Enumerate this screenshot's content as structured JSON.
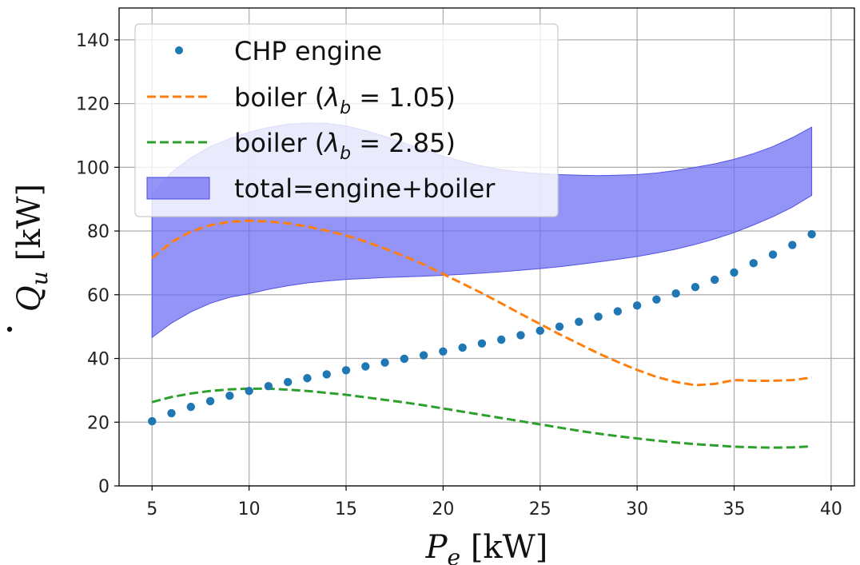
{
  "chart_data": {
    "type": "line",
    "xlabel": {
      "base": "P",
      "sub": "e",
      "unit": " [kW]"
    },
    "ylabel": {
      "base": "Q",
      "sub": "u",
      "unit": " [kW]",
      "accent": "dot"
    },
    "xlim": [
      3.3,
      41.2
    ],
    "ylim": [
      0,
      150
    ],
    "xticks": [
      5,
      10,
      15,
      20,
      25,
      30,
      35,
      40
    ],
    "yticks": [
      0,
      20,
      40,
      60,
      80,
      100,
      120,
      140
    ],
    "grid": true,
    "legend_position": "top-left",
    "legend": [
      {
        "key": "engine",
        "marker": "dot",
        "text": "CHP engine"
      },
      {
        "key": "boiler_a",
        "marker": "dash",
        "prefix": "boiler (",
        "lambda": "λ",
        "sub": "b",
        "eq": " = 1.05)"
      },
      {
        "key": "boiler_b",
        "marker": "dash",
        "prefix": "boiler (",
        "lambda": "λ",
        "sub": "b",
        "eq": " = 2.85)"
      },
      {
        "key": "total",
        "marker": "patch",
        "text": "total=engine+boiler"
      }
    ],
    "series": [
      {
        "key": "engine",
        "style": "scatter",
        "color": "#1f77b4",
        "x": [
          5,
          6,
          7,
          8,
          9,
          10,
          11,
          12,
          13,
          14,
          15,
          16,
          17,
          18,
          19,
          20,
          21,
          22,
          23,
          24,
          25,
          26,
          27,
          28,
          29,
          30,
          31,
          32,
          33,
          34,
          35,
          36,
          37,
          38,
          39
        ],
        "values": [
          20.3,
          22.8,
          24.8,
          26.6,
          28.3,
          29.8,
          31.3,
          32.6,
          33.8,
          35.0,
          36.3,
          37.5,
          38.7,
          39.9,
          41.0,
          42.2,
          43.4,
          44.7,
          45.9,
          47.3,
          48.7,
          50.0,
          51.5,
          53.1,
          54.8,
          56.6,
          58.5,
          60.4,
          62.4,
          64.7,
          67.0,
          69.9,
          72.6,
          75.6,
          79.0
        ]
      },
      {
        "key": "boiler_a",
        "style": "dashed",
        "color": "#ff7f0e",
        "x": [
          5,
          6,
          7,
          8,
          9,
          10,
          11,
          12,
          13,
          14,
          15,
          16,
          17,
          18,
          19,
          20,
          21,
          22,
          23,
          24,
          25,
          26,
          27,
          28,
          29,
          30,
          31,
          32,
          33,
          34,
          35,
          36,
          37,
          38,
          39
        ],
        "values": [
          71.5,
          76.5,
          79.8,
          81.8,
          82.9,
          83.2,
          83.0,
          82.4,
          81.4,
          80.1,
          78.6,
          76.7,
          74.5,
          72.1,
          69.5,
          66.5,
          63.5,
          60.5,
          57.3,
          54.0,
          50.8,
          47.6,
          44.6,
          41.6,
          38.9,
          36.4,
          34.2,
          32.6,
          31.6,
          32.0,
          33.2,
          33.0,
          33.0,
          33.2,
          34.0
        ]
      },
      {
        "key": "boiler_b",
        "style": "dashed",
        "color": "#2ca02c",
        "x": [
          5,
          6,
          7,
          8,
          9,
          10,
          11,
          12,
          13,
          14,
          15,
          16,
          17,
          18,
          19,
          20,
          21,
          22,
          23,
          24,
          25,
          26,
          27,
          28,
          29,
          30,
          31,
          32,
          33,
          34,
          35,
          36,
          37,
          38,
          39
        ],
        "values": [
          26.3,
          27.9,
          29.0,
          29.8,
          30.3,
          30.5,
          30.5,
          30.2,
          29.8,
          29.2,
          28.6,
          27.8,
          27.0,
          26.2,
          25.3,
          24.3,
          23.3,
          22.3,
          21.3,
          20.3,
          19.3,
          18.3,
          17.3,
          16.4,
          15.6,
          14.9,
          14.2,
          13.6,
          13.1,
          12.7,
          12.3,
          12.1,
          12.0,
          12.1,
          12.4
        ]
      },
      {
        "key": "total",
        "style": "band",
        "color": "#6b6bf2",
        "x": [
          5,
          6,
          7,
          8,
          9,
          10,
          11,
          12,
          13,
          14,
          15,
          16,
          17,
          18,
          19,
          20,
          21,
          22,
          23,
          24,
          25,
          26,
          27,
          28,
          29,
          30,
          31,
          32,
          33,
          34,
          35,
          36,
          37,
          38,
          39
        ],
        "lower": [
          46.6,
          51.1,
          54.6,
          57.3,
          59.2,
          60.3,
          61.7,
          62.8,
          63.7,
          64.3,
          64.8,
          65.1,
          65.4,
          65.6,
          65.8,
          66.1,
          66.4,
          66.8,
          67.2,
          67.7,
          68.2,
          68.8,
          69.5,
          70.3,
          71.1,
          72.0,
          73.1,
          74.3,
          75.8,
          77.5,
          79.5,
          81.9,
          84.5,
          87.5,
          91.2
        ],
        "upper": [
          91.6,
          98.4,
          103.0,
          106.5,
          109.0,
          111.0,
          112.5,
          113.5,
          113.9,
          113.8,
          113.0,
          111.5,
          109.7,
          107.6,
          105.5,
          103.5,
          101.8,
          100.4,
          99.3,
          98.5,
          98.0,
          97.7,
          97.5,
          97.4,
          97.5,
          97.7,
          98.2,
          99.0,
          100.0,
          101.1,
          102.5,
          104.3,
          106.5,
          109.3,
          112.6
        ]
      }
    ]
  }
}
